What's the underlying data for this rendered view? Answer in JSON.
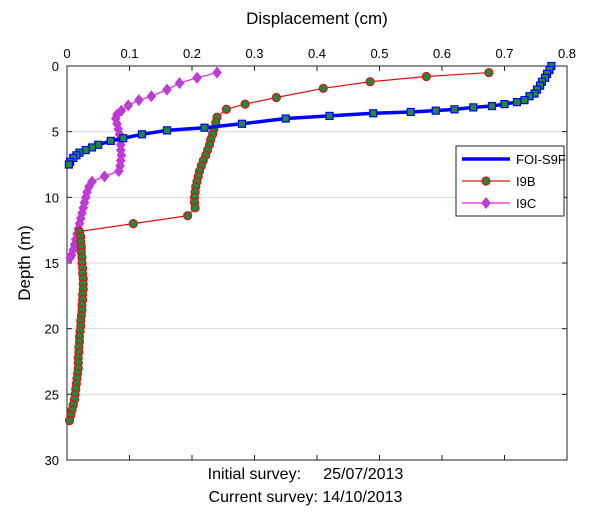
{
  "chart_data": {
    "type": "line",
    "title": "",
    "xlabel": "Displacement (cm)",
    "ylabel": "Depth (m)",
    "xaxis_position": "top",
    "yaxis_reversed": true,
    "xlim": [
      0,
      0.8
    ],
    "ylim": [
      0,
      30
    ],
    "xticks": [
      "0",
      "0.1",
      "0.2",
      "0.3",
      "0.4",
      "0.5",
      "0.6",
      "0.7",
      "0.8"
    ],
    "yticks": [
      "0",
      "5",
      "10",
      "15",
      "20",
      "25",
      "30"
    ],
    "grid": true,
    "legend_position": "right",
    "series": [
      {
        "name": "FOI-S9F",
        "color": "#0000ff",
        "marker_fill": "#1f8a3a",
        "marker": "square",
        "points": [
          [
            0.775,
            0.0
          ],
          [
            0.772,
            0.3
          ],
          [
            0.768,
            0.6
          ],
          [
            0.765,
            0.9
          ],
          [
            0.76,
            1.2
          ],
          [
            0.757,
            1.5
          ],
          [
            0.752,
            1.8
          ],
          [
            0.748,
            2.1
          ],
          [
            0.74,
            2.3
          ],
          [
            0.732,
            2.6
          ],
          [
            0.72,
            2.75
          ],
          [
            0.7,
            2.9
          ],
          [
            0.68,
            3.05
          ],
          [
            0.65,
            3.15
          ],
          [
            0.62,
            3.3
          ],
          [
            0.59,
            3.4
          ],
          [
            0.55,
            3.5
          ],
          [
            0.49,
            3.6
          ],
          [
            0.42,
            3.8
          ],
          [
            0.35,
            4.0
          ],
          [
            0.28,
            4.4
          ],
          [
            0.22,
            4.7
          ],
          [
            0.16,
            4.9
          ],
          [
            0.12,
            5.2
          ],
          [
            0.09,
            5.5
          ],
          [
            0.07,
            5.7
          ],
          [
            0.05,
            6.0
          ],
          [
            0.04,
            6.2
          ],
          [
            0.03,
            6.4
          ],
          [
            0.02,
            6.6
          ],
          [
            0.015,
            6.8
          ],
          [
            0.01,
            7.0
          ],
          [
            0.005,
            7.3
          ],
          [
            0.003,
            7.5
          ]
        ]
      },
      {
        "name": "I9B",
        "color": "#e01010",
        "marker_fill": "#1f8a3a",
        "marker": "circle",
        "points": [
          [
            0.675,
            0.5
          ],
          [
            0.575,
            0.8
          ],
          [
            0.485,
            1.2
          ],
          [
            0.41,
            1.7
          ],
          [
            0.335,
            2.4
          ],
          [
            0.285,
            2.9
          ],
          [
            0.255,
            3.3
          ],
          [
            0.24,
            3.9
          ],
          [
            0.238,
            4.3
          ],
          [
            0.235,
            4.8
          ],
          [
            0.233,
            5.2
          ],
          [
            0.23,
            5.6
          ],
          [
            0.228,
            6.0
          ],
          [
            0.225,
            6.4
          ],
          [
            0.222,
            6.8
          ],
          [
            0.218,
            7.2
          ],
          [
            0.215,
            7.6
          ],
          [
            0.212,
            8.0
          ],
          [
            0.21,
            8.4
          ],
          [
            0.208,
            8.8
          ],
          [
            0.206,
            9.2
          ],
          [
            0.205,
            9.6
          ],
          [
            0.204,
            10.0
          ],
          [
            0.204,
            10.4
          ],
          [
            0.205,
            10.8
          ],
          [
            0.193,
            11.4
          ],
          [
            0.106,
            12.0
          ],
          [
            0.02,
            12.6
          ],
          [
            0.022,
            13.0
          ],
          [
            0.022,
            13.4
          ],
          [
            0.023,
            13.8
          ],
          [
            0.023,
            14.2
          ],
          [
            0.024,
            14.6
          ],
          [
            0.024,
            15.0
          ],
          [
            0.025,
            15.4
          ],
          [
            0.025,
            15.8
          ],
          [
            0.026,
            16.2
          ],
          [
            0.026,
            16.6
          ],
          [
            0.026,
            17.0
          ],
          [
            0.025,
            17.4
          ],
          [
            0.025,
            17.8
          ],
          [
            0.024,
            18.2
          ],
          [
            0.024,
            18.6
          ],
          [
            0.023,
            19.0
          ],
          [
            0.022,
            19.4
          ],
          [
            0.022,
            19.8
          ],
          [
            0.021,
            20.2
          ],
          [
            0.02,
            20.6
          ],
          [
            0.02,
            21.0
          ],
          [
            0.019,
            21.4
          ],
          [
            0.019,
            21.8
          ],
          [
            0.018,
            22.2
          ],
          [
            0.018,
            22.6
          ],
          [
            0.018,
            23.0
          ],
          [
            0.017,
            23.4
          ],
          [
            0.016,
            23.8
          ],
          [
            0.015,
            24.2
          ],
          [
            0.014,
            24.6
          ],
          [
            0.013,
            25.0
          ],
          [
            0.012,
            25.4
          ],
          [
            0.01,
            25.8
          ],
          [
            0.008,
            26.2
          ],
          [
            0.006,
            26.6
          ],
          [
            0.004,
            27.0
          ]
        ]
      },
      {
        "name": "I9C",
        "color": "#e020e0",
        "marker_fill": "#a050c8",
        "marker": "diamond",
        "points": [
          [
            0.24,
            0.5
          ],
          [
            0.208,
            0.9
          ],
          [
            0.18,
            1.3
          ],
          [
            0.16,
            1.8
          ],
          [
            0.135,
            2.3
          ],
          [
            0.115,
            2.6
          ],
          [
            0.098,
            3.0
          ],
          [
            0.087,
            3.4
          ],
          [
            0.08,
            3.7
          ],
          [
            0.078,
            4.0
          ],
          [
            0.08,
            4.4
          ],
          [
            0.082,
            4.8
          ],
          [
            0.084,
            5.2
          ],
          [
            0.085,
            5.6
          ],
          [
            0.086,
            6.0
          ],
          [
            0.086,
            6.4
          ],
          [
            0.087,
            6.8
          ],
          [
            0.086,
            7.2
          ],
          [
            0.085,
            7.6
          ],
          [
            0.083,
            8.0
          ],
          [
            0.06,
            8.4
          ],
          [
            0.04,
            8.8
          ],
          [
            0.035,
            9.2
          ],
          [
            0.032,
            9.6
          ],
          [
            0.03,
            10.0
          ],
          [
            0.028,
            10.4
          ],
          [
            0.026,
            10.8
          ],
          [
            0.024,
            11.2
          ],
          [
            0.022,
            11.6
          ],
          [
            0.02,
            12.0
          ],
          [
            0.018,
            12.4
          ],
          [
            0.016,
            12.8
          ],
          [
            0.014,
            13.2
          ],
          [
            0.012,
            13.6
          ],
          [
            0.01,
            14.0
          ],
          [
            0.007,
            14.4
          ],
          [
            0.005,
            14.6
          ]
        ]
      }
    ]
  },
  "survey": {
    "initial": "Initial survey:     25/07/2013",
    "current": "Current survey: 14/10/2013"
  }
}
